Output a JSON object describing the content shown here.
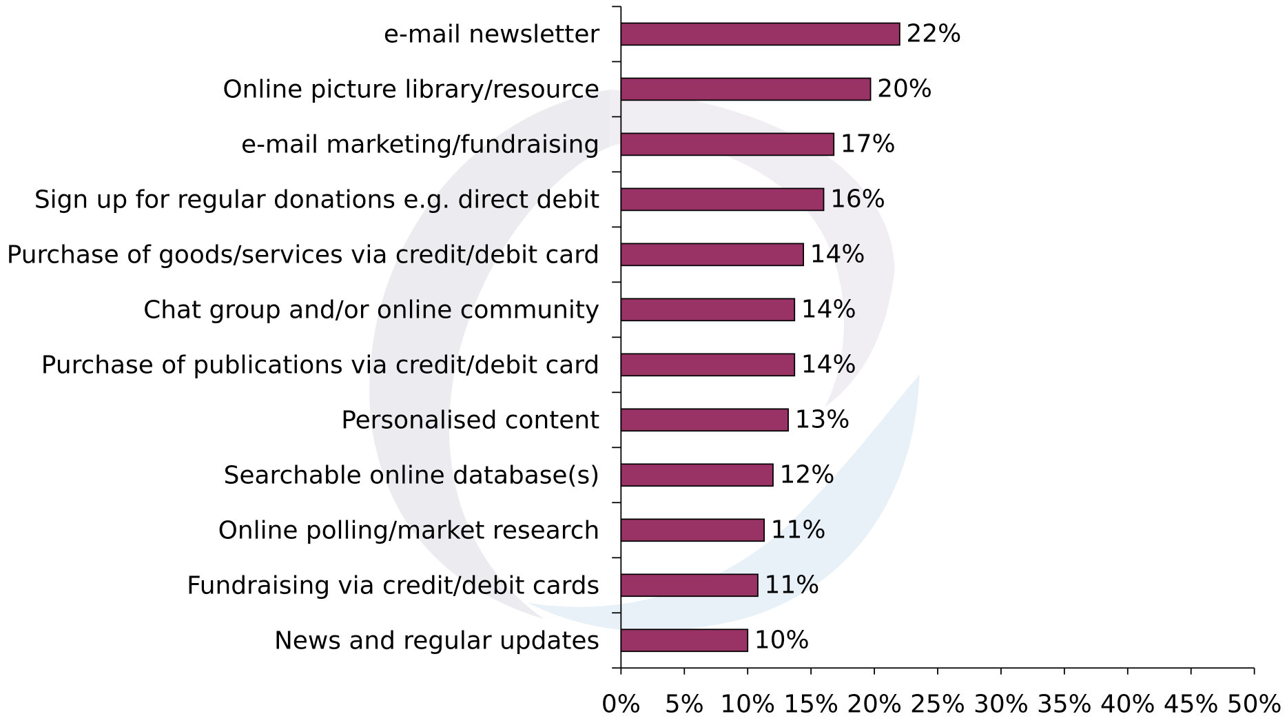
{
  "chart_data": {
    "type": "bar",
    "orientation": "horizontal",
    "categories": [
      "e-mail newsletter",
      "Online picture library/resource",
      "e-mail marketing/fundraising",
      "Sign up for regular donations e.g. direct debit",
      "Purchase of goods/services via credit/debit card",
      "Chat group and/or online community",
      "Purchase of publications via credit/debit card",
      "Personalised content",
      "Searchable online database(s)",
      "Online polling/market research",
      "Fundraising via credit/debit cards",
      "News and regular updates"
    ],
    "values": [
      22,
      19.7,
      16.8,
      16,
      14.4,
      13.7,
      13.7,
      13.2,
      12,
      11.3,
      10.8,
      10
    ],
    "value_labels": [
      "22%",
      "20%",
      "17%",
      "16%",
      "14%",
      "14%",
      "14%",
      "13%",
      "12%",
      "11%",
      "11%",
      "10%"
    ],
    "color": "#993366",
    "xlim": [
      0,
      50
    ],
    "xticks": [
      {
        "value": 0,
        "label": "0%"
      },
      {
        "value": 5,
        "label": "5%"
      },
      {
        "value": 10,
        "label": "10%"
      },
      {
        "value": 15,
        "label": "15%"
      },
      {
        "value": 20,
        "label": "20%"
      },
      {
        "value": 25,
        "label": "25%"
      },
      {
        "value": 30,
        "label": "30%"
      },
      {
        "value": 35,
        "label": "35%"
      },
      {
        "value": 40,
        "label": "40%"
      },
      {
        "value": 45,
        "label": "45%"
      },
      {
        "value": 50,
        "label": "50%"
      }
    ],
    "grid": false
  }
}
